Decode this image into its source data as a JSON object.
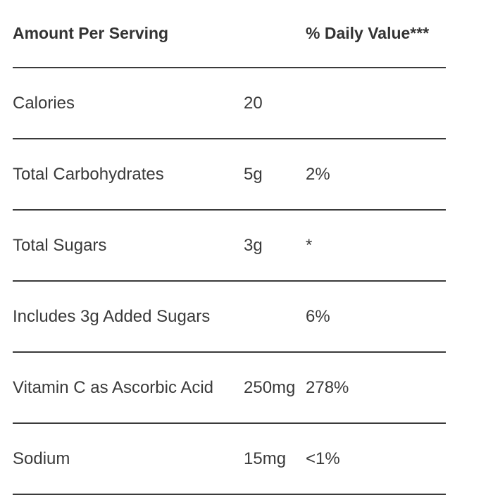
{
  "header": {
    "amount_label": "Amount Per Serving",
    "dv_label": "% Daily Value***"
  },
  "rows": [
    {
      "name": "Calories",
      "amount": "20",
      "dv": ""
    },
    {
      "name": "Total Carbohydrates",
      "amount": "5g",
      "dv": "2%"
    },
    {
      "name": "Total Sugars",
      "amount": "3g",
      "dv": "*"
    },
    {
      "name": "Includes 3g Added Sugars",
      "amount": "",
      "dv": "6%"
    },
    {
      "name": "Vitamin C as Ascorbic Acid",
      "amount": "250mg",
      "dv": "278%"
    },
    {
      "name": "Sodium",
      "amount": "15mg",
      "dv": "<1%"
    }
  ]
}
